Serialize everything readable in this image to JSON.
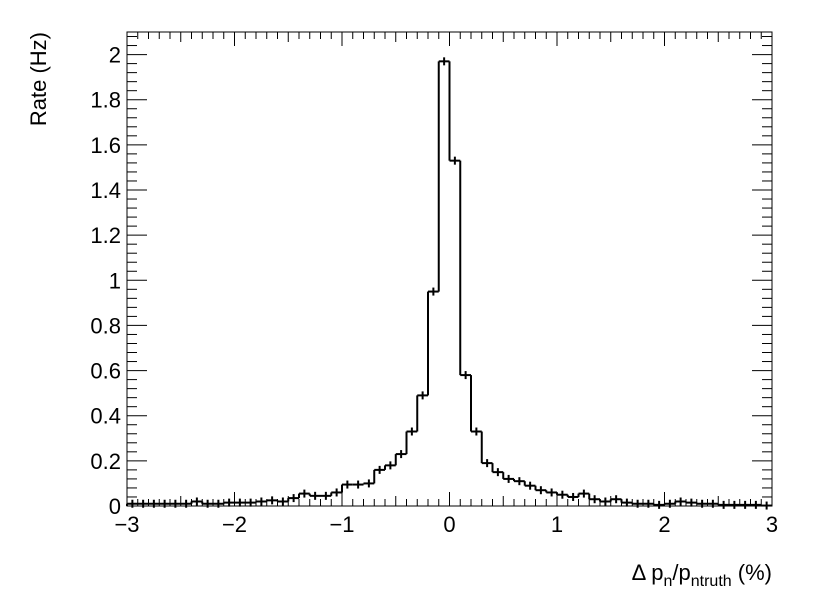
{
  "chart_data": {
    "type": "histogram",
    "y_label": "Rate (Hz)",
    "x_label": [
      {
        "text": "Δ p"
      },
      {
        "text": "n",
        "sub": true
      },
      {
        "text": "/p"
      },
      {
        "text": "ntruth",
        "sub": true
      },
      {
        "text": " (%)"
      }
    ],
    "bins": [
      -3.0,
      -2.9,
      -2.8,
      -2.7,
      -2.6,
      -2.5,
      -2.4,
      -2.3,
      -2.2,
      -2.1,
      -2.0,
      -1.9,
      -1.8,
      -1.7,
      -1.6,
      -1.5,
      -1.4,
      -1.3,
      -1.2,
      -1.1,
      -1.0,
      -0.9,
      -0.8,
      -0.7,
      -0.6,
      -0.5,
      -0.4,
      -0.3,
      -0.2,
      -0.1,
      0.0,
      0.1,
      0.2,
      0.3,
      0.4,
      0.5,
      0.6,
      0.7,
      0.8,
      0.9,
      1.0,
      1.1,
      1.2,
      1.3,
      1.4,
      1.5,
      1.6,
      1.7,
      1.8,
      1.9,
      2.0,
      2.1,
      2.2,
      2.3,
      2.4,
      2.5,
      2.6,
      2.7,
      2.8,
      2.9,
      3.0
    ],
    "values": [
      0.01,
      0.01,
      0.01,
      0.01,
      0.01,
      0.01,
      0.02,
      0.01,
      0.01,
      0.015,
      0.015,
      0.015,
      0.02,
      0.025,
      0.02,
      0.035,
      0.055,
      0.045,
      0.045,
      0.06,
      0.095,
      0.095,
      0.1,
      0.16,
      0.18,
      0.23,
      0.33,
      0.49,
      0.95,
      1.97,
      1.53,
      0.58,
      0.33,
      0.19,
      0.15,
      0.12,
      0.11,
      0.09,
      0.07,
      0.06,
      0.05,
      0.04,
      0.055,
      0.03,
      0.02,
      0.03,
      0.015,
      0.01,
      0.01,
      0.005,
      0.01,
      0.02,
      0.015,
      0.01,
      0.01,
      0.005,
      0.005,
      0.005,
      0.005,
      0.002
    ],
    "color": "#000000",
    "xlim": [
      -3,
      3
    ],
    "xticks": [
      {
        "value": -3,
        "label": "−3"
      },
      {
        "value": -2,
        "label": "−2"
      },
      {
        "value": -1,
        "label": "−1"
      },
      0,
      1,
      2,
      3
    ],
    "ylim": [
      0,
      2.1
    ],
    "yticks": [
      0,
      0.2,
      0.4,
      0.6,
      0.8,
      1,
      1.2,
      1.4,
      1.6,
      1.8,
      2
    ]
  }
}
